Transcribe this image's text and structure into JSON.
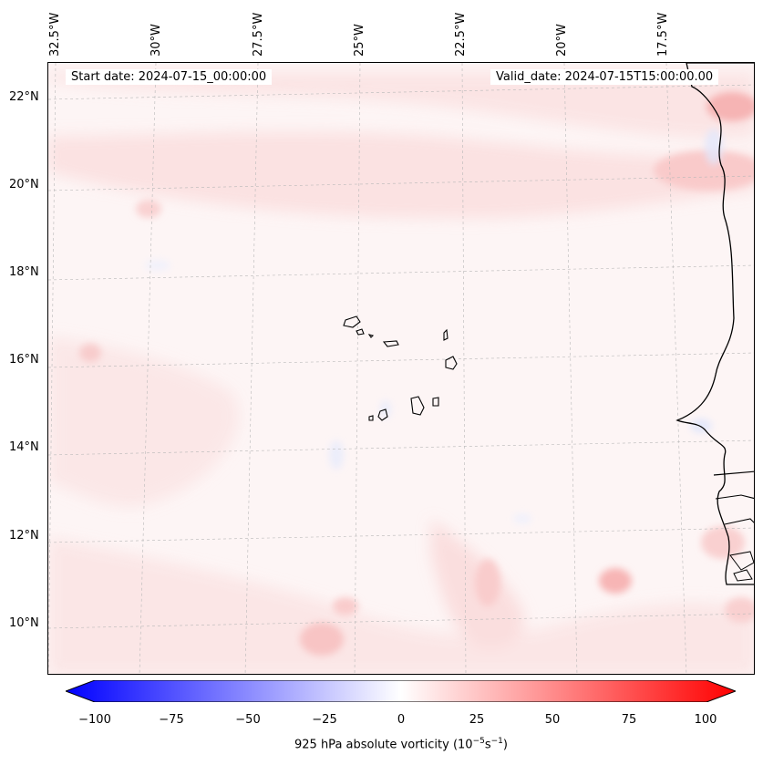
{
  "lon_labels": [
    "32.5°W",
    "30°W",
    "27.5°W",
    "25°W",
    "22.5°W",
    "20°W",
    "17.5°W"
  ],
  "lat_labels": [
    "22°N",
    "20°N",
    "18°N",
    "16°N",
    "14°N",
    "12°N",
    "10°N"
  ],
  "start_date": "Start date: 2024-07-15_00:00:00",
  "valid_date": "Valid_date: 2024-07-15T15:00:00.00",
  "colorbar": {
    "ticks": [
      "−100",
      "−75",
      "−50",
      "−25",
      "0",
      "25",
      "50",
      "75",
      "100"
    ],
    "label_main": "925 hPa absolute vorticity (10",
    "label_exp1": "−5",
    "label_mid": "s",
    "label_exp2": "−1",
    "label_end": ")",
    "min_color": "#0000ff",
    "max_color": "#ff0000",
    "neutral_color": "#ffffff"
  }
}
